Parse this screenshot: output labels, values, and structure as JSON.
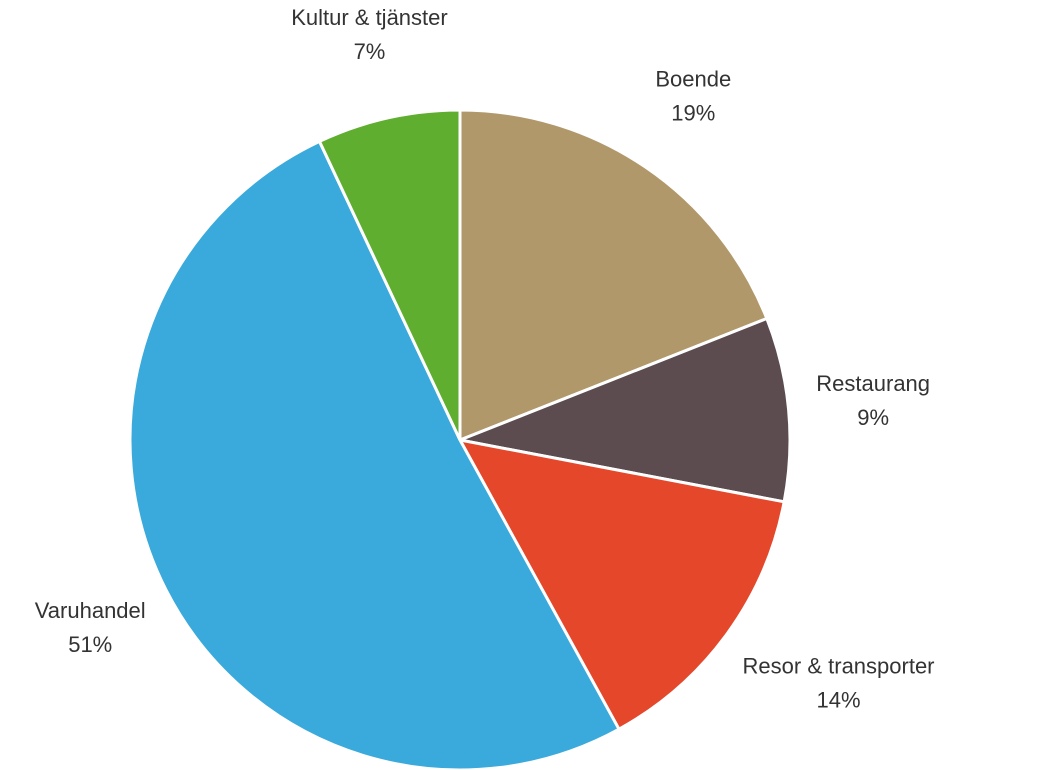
{
  "chart_data": {
    "type": "pie",
    "categories": [
      "Boende",
      "Restaurang",
      "Resor & transporter",
      "Varuhandel",
      "Kultur & tjänster"
    ],
    "values": [
      19,
      9,
      14,
      51,
      7
    ],
    "value_labels": [
      "19%",
      "9%",
      "14%",
      "51%",
      "7%"
    ],
    "colors": [
      "#b1986a",
      "#5c4c4f",
      "#e5472b",
      "#3aa9db",
      "#5fae2f"
    ]
  }
}
